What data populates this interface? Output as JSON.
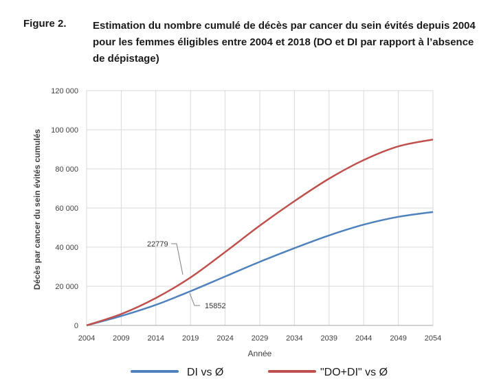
{
  "figure": {
    "label": "Figure 2.",
    "title": "Estimation du nombre cumulé de décès par cancer du sein évités depuis 2004 pour les femmes éligibles entre 2004 et 2018 (DO et DI par rapport à l’absence de dépistage)"
  },
  "chart_data": {
    "type": "line",
    "title": "",
    "xlabel": "Année",
    "ylabel": "Décès par cancer du sein évités cumulés",
    "xlim": [
      2004,
      2054
    ],
    "ylim": [
      0,
      120000
    ],
    "grid": true,
    "x_ticks": [
      2004,
      2009,
      2014,
      2019,
      2024,
      2029,
      2034,
      2039,
      2044,
      2049,
      2054
    ],
    "y_ticks": [
      0,
      20000,
      40000,
      60000,
      80000,
      100000,
      120000
    ],
    "y_tick_labels": [
      "0",
      "20 000",
      "40 000",
      "60 000",
      "80 000",
      "100 000",
      "120 000"
    ],
    "x": [
      2004,
      2009,
      2014,
      2019,
      2024,
      2029,
      2034,
      2039,
      2044,
      2049,
      2054
    ],
    "series": [
      {
        "name": "DI vs Ø",
        "color": "#4f81bd",
        "values": [
          0,
          4800,
          10500,
          17500,
          25000,
          32500,
          39500,
          46000,
          51500,
          55500,
          58000
        ]
      },
      {
        "name": "\"DO+DI\" vs Ø",
        "color": "#c0504d",
        "values": [
          0,
          5800,
          14000,
          24500,
          37500,
          51000,
          63500,
          75000,
          84500,
          91500,
          95000
        ]
      }
    ],
    "annotations": [
      {
        "text": "22779",
        "x": 2018,
        "y": 22779,
        "series": "\"DO+DI\" vs Ø"
      },
      {
        "text": "15852",
        "x": 2018,
        "y": 15852,
        "series": "DI vs Ø"
      }
    ],
    "legend_position": "bottom"
  }
}
